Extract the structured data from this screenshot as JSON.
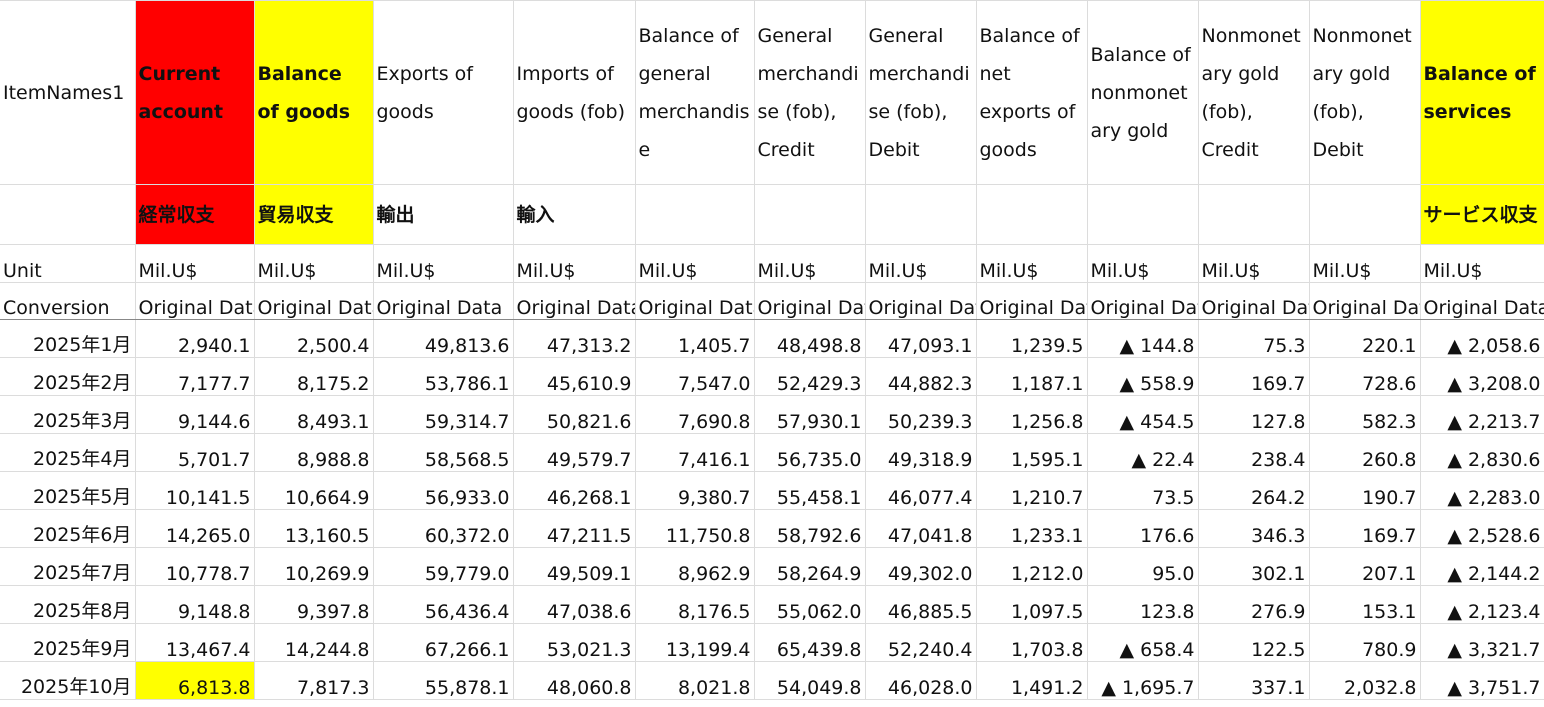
{
  "table": {
    "header": [
      "ItemNames1",
      "Current account",
      "Balance of goods",
      "Exports of goods",
      "Imports of goods (fob)",
      "Balance of general merchandise",
      "General merchandise (fob), Credit",
      "General merchandise (fob), Debit",
      "Balance of net exports of goods",
      "Balance of nonmonetary gold",
      "Nonmonetary gold (fob), Credit",
      "Nonmonetary gold (fob), Debit",
      "Balance of services"
    ],
    "japanese": [
      null,
      "経常収支",
      "貿易収支",
      "輸出",
      "輸入",
      null,
      null,
      null,
      null,
      null,
      null,
      null,
      "サービス収支"
    ],
    "unit": [
      "Unit",
      "Mil.U$",
      "Mil.U$",
      "Mil.U$",
      "Mil.U$",
      "Mil.U$",
      "Mil.U$",
      "Mil.U$",
      "Mil.U$",
      "Mil.U$",
      "Mil.U$",
      "Mil.U$",
      "Mil.U$"
    ],
    "conversion": [
      "Conversion",
      "Original Data",
      "Original Data",
      "Original Data",
      "Original Data",
      "Original Data",
      "Original Data",
      "Original Data",
      "Original Data",
      "Original Data",
      "Original Data",
      "Original Data",
      "Original Data"
    ],
    "rows": [
      [
        "2025年1月",
        "2,940.1",
        "2,500.4",
        "49,813.6",
        "47,313.2",
        "1,405.7",
        "48,498.8",
        "47,093.1",
        "1,239.5",
        "▲ 144.8",
        "75.3",
        "220.1",
        "▲ 2,058.6"
      ],
      [
        "2025年2月",
        "7,177.7",
        "8,175.2",
        "53,786.1",
        "45,610.9",
        "7,547.0",
        "52,429.3",
        "44,882.3",
        "1,187.1",
        "▲ 558.9",
        "169.7",
        "728.6",
        "▲ 3,208.0"
      ],
      [
        "2025年3月",
        "9,144.6",
        "8,493.1",
        "59,314.7",
        "50,821.6",
        "7,690.8",
        "57,930.1",
        "50,239.3",
        "1,256.8",
        "▲ 454.5",
        "127.8",
        "582.3",
        "▲ 2,213.7"
      ],
      [
        "2025年4月",
        "5,701.7",
        "8,988.8",
        "58,568.5",
        "49,579.7",
        "7,416.1",
        "56,735.0",
        "49,318.9",
        "1,595.1",
        "▲ 22.4",
        "238.4",
        "260.8",
        "▲ 2,830.6"
      ],
      [
        "2025年5月",
        "10,141.5",
        "10,664.9",
        "56,933.0",
        "46,268.1",
        "9,380.7",
        "55,458.1",
        "46,077.4",
        "1,210.7",
        "73.5",
        "264.2",
        "190.7",
        "▲ 2,283.0"
      ],
      [
        "2025年6月",
        "14,265.0",
        "13,160.5",
        "60,372.0",
        "47,211.5",
        "11,750.8",
        "58,792.6",
        "47,041.8",
        "1,233.1",
        "176.6",
        "346.3",
        "169.7",
        "▲ 2,528.6"
      ],
      [
        "2025年7月",
        "10,778.7",
        "10,269.9",
        "59,779.0",
        "49,509.1",
        "8,962.9",
        "58,264.9",
        "49,302.0",
        "1,212.0",
        "95.0",
        "302.1",
        "207.1",
        "▲ 2,144.2"
      ],
      [
        "2025年8月",
        "9,148.8",
        "9,397.8",
        "56,436.4",
        "47,038.6",
        "8,176.5",
        "55,062.0",
        "46,885.5",
        "1,097.5",
        "123.8",
        "276.9",
        "153.1",
        "▲ 2,123.4"
      ],
      [
        "2025年9月",
        "13,467.4",
        "14,244.8",
        "67,266.1",
        "53,021.3",
        "13,199.4",
        "65,439.8",
        "52,240.4",
        "1,703.8",
        "▲ 658.4",
        "122.5",
        "780.9",
        "▲ 3,321.7"
      ],
      [
        "2025年10月",
        "6,813.8",
        "7,817.3",
        "55,878.1",
        "48,060.8",
        "8,021.8",
        "54,049.8",
        "46,028.0",
        "1,491.2",
        "▲ 1,695.7",
        "337.1",
        "2,032.8",
        "▲ 3,751.7"
      ]
    ]
  }
}
